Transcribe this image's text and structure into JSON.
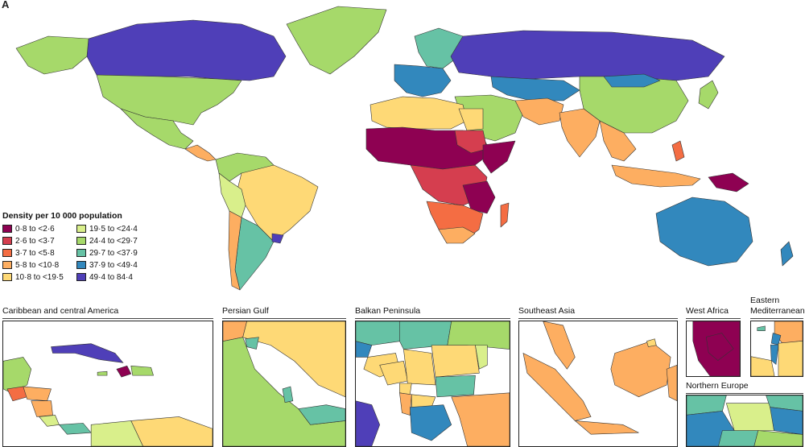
{
  "panel_letter": "A",
  "legend": {
    "title": "Density per 10 000 population",
    "items": [
      {
        "label": "0·8 to <2·6",
        "color": "#8e0152"
      },
      {
        "label": "2·6 to <3·7",
        "color": "#d53e4f"
      },
      {
        "label": "3·7 to <5·8",
        "color": "#f46d43"
      },
      {
        "label": "5·8 to <10·8",
        "color": "#fdae61"
      },
      {
        "label": "10·8 to <19·5",
        "color": "#fed976"
      },
      {
        "label": "19·5 to <24·4",
        "color": "#d9ef8b"
      },
      {
        "label": "24·4 to <29·7",
        "color": "#a6d96a"
      },
      {
        "label": "29·7 to <37·9",
        "color": "#66c2a5"
      },
      {
        "label": "37·9 to <49·4",
        "color": "#3288bd"
      },
      {
        "label": "49·4 to 84·4",
        "color": "#4f3fb8"
      }
    ]
  },
  "insets": {
    "caribbean": "Caribbean and central America",
    "persian_gulf": "Persian Gulf",
    "balkan": "Balkan Peninsula",
    "southeast_asia": "Southeast Asia",
    "west_africa": "West Africa",
    "eastern_med_line1": "Eastern",
    "eastern_med_line2": "Mediterranean",
    "northern_europe": "Northern Europe"
  }
}
